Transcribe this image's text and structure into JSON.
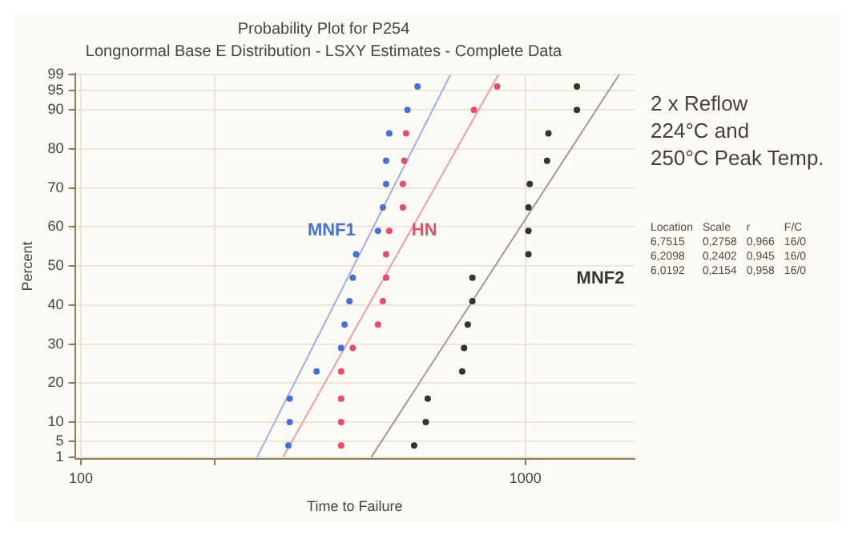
{
  "chart_data": {
    "type": "scatter",
    "title": "Probability Plot for P254",
    "subtitle": "Longnormal Base E Distribution - LSXY Estimates - Complete Data",
    "xlabel": "Time to Failure",
    "ylabel": "Percent",
    "log": "x",
    "grid": true,
    "legend": false,
    "marker": "circle",
    "xlim": [
      97,
      1760
    ],
    "xticks": [
      100,
      {
        "value": 200,
        "label": null
      },
      1000
    ],
    "ylim": [
      0.6,
      99.3
    ],
    "yticks": [
      1,
      5,
      10,
      20,
      30,
      40,
      50,
      60,
      70,
      80,
      90,
      95,
      99
    ],
    "series": [
      {
        "name": "MNF1",
        "color": "#4a6fd0",
        "x": [
          293,
          295,
          295,
          339,
          385,
          392,
          402,
          409,
          416,
          466,
          478,
          486,
          486,
          494,
          543,
          572
        ],
        "values": [
          4,
          10,
          16,
          23,
          29,
          35,
          41,
          47,
          53,
          59,
          65,
          71,
          77,
          84,
          90,
          96
        ]
      },
      {
        "name": "HN",
        "color": "#e0506a",
        "x": [
          385,
          385,
          385,
          385,
          409,
          466,
          478,
          486,
          486,
          494,
          530,
          530,
          534,
          539,
          766,
          864
        ],
        "values": [
          4,
          10,
          16,
          23,
          29,
          35,
          41,
          47,
          53,
          59,
          65,
          71,
          77,
          84,
          90,
          96
        ]
      },
      {
        "name": "MNF2",
        "color": "#333333",
        "x": [
          562,
          597,
          603,
          721,
          728,
          742,
          760,
          760,
          1016,
          1016,
          1016,
          1023,
          1119,
          1127,
          1306,
          1306
        ],
        "values": [
          4,
          10,
          16,
          23,
          29,
          35,
          41,
          47,
          53,
          59,
          65,
          71,
          77,
          84,
          90,
          96
        ]
      },
      {
        "type": "line",
        "marker": "none",
        "color": "#9fb0e0",
        "x": [
          249,
          678
        ],
        "values": [
          1,
          99
        ]
      },
      {
        "type": "line",
        "marker": "none",
        "color": "#eaa0a8",
        "x": [
          285,
          869
        ],
        "values": [
          1,
          99
        ]
      },
      {
        "type": "line",
        "marker": "none",
        "color": "#a09a90",
        "x": [
          450,
          1624
        ],
        "values": [
          1,
          99
        ]
      }
    ],
    "annotations": [
      "2 x Reflow\n224°C and\n250°C Peak Temp.",
      "Location\tScale\tr\tF/C",
      "6,7515\t0,2758\t0,966\t16/0",
      "6,2098\t0,2402\t0,945\t16/0",
      "6,0192\t0,2154\t0,958\t16/0"
    ]
  }
}
